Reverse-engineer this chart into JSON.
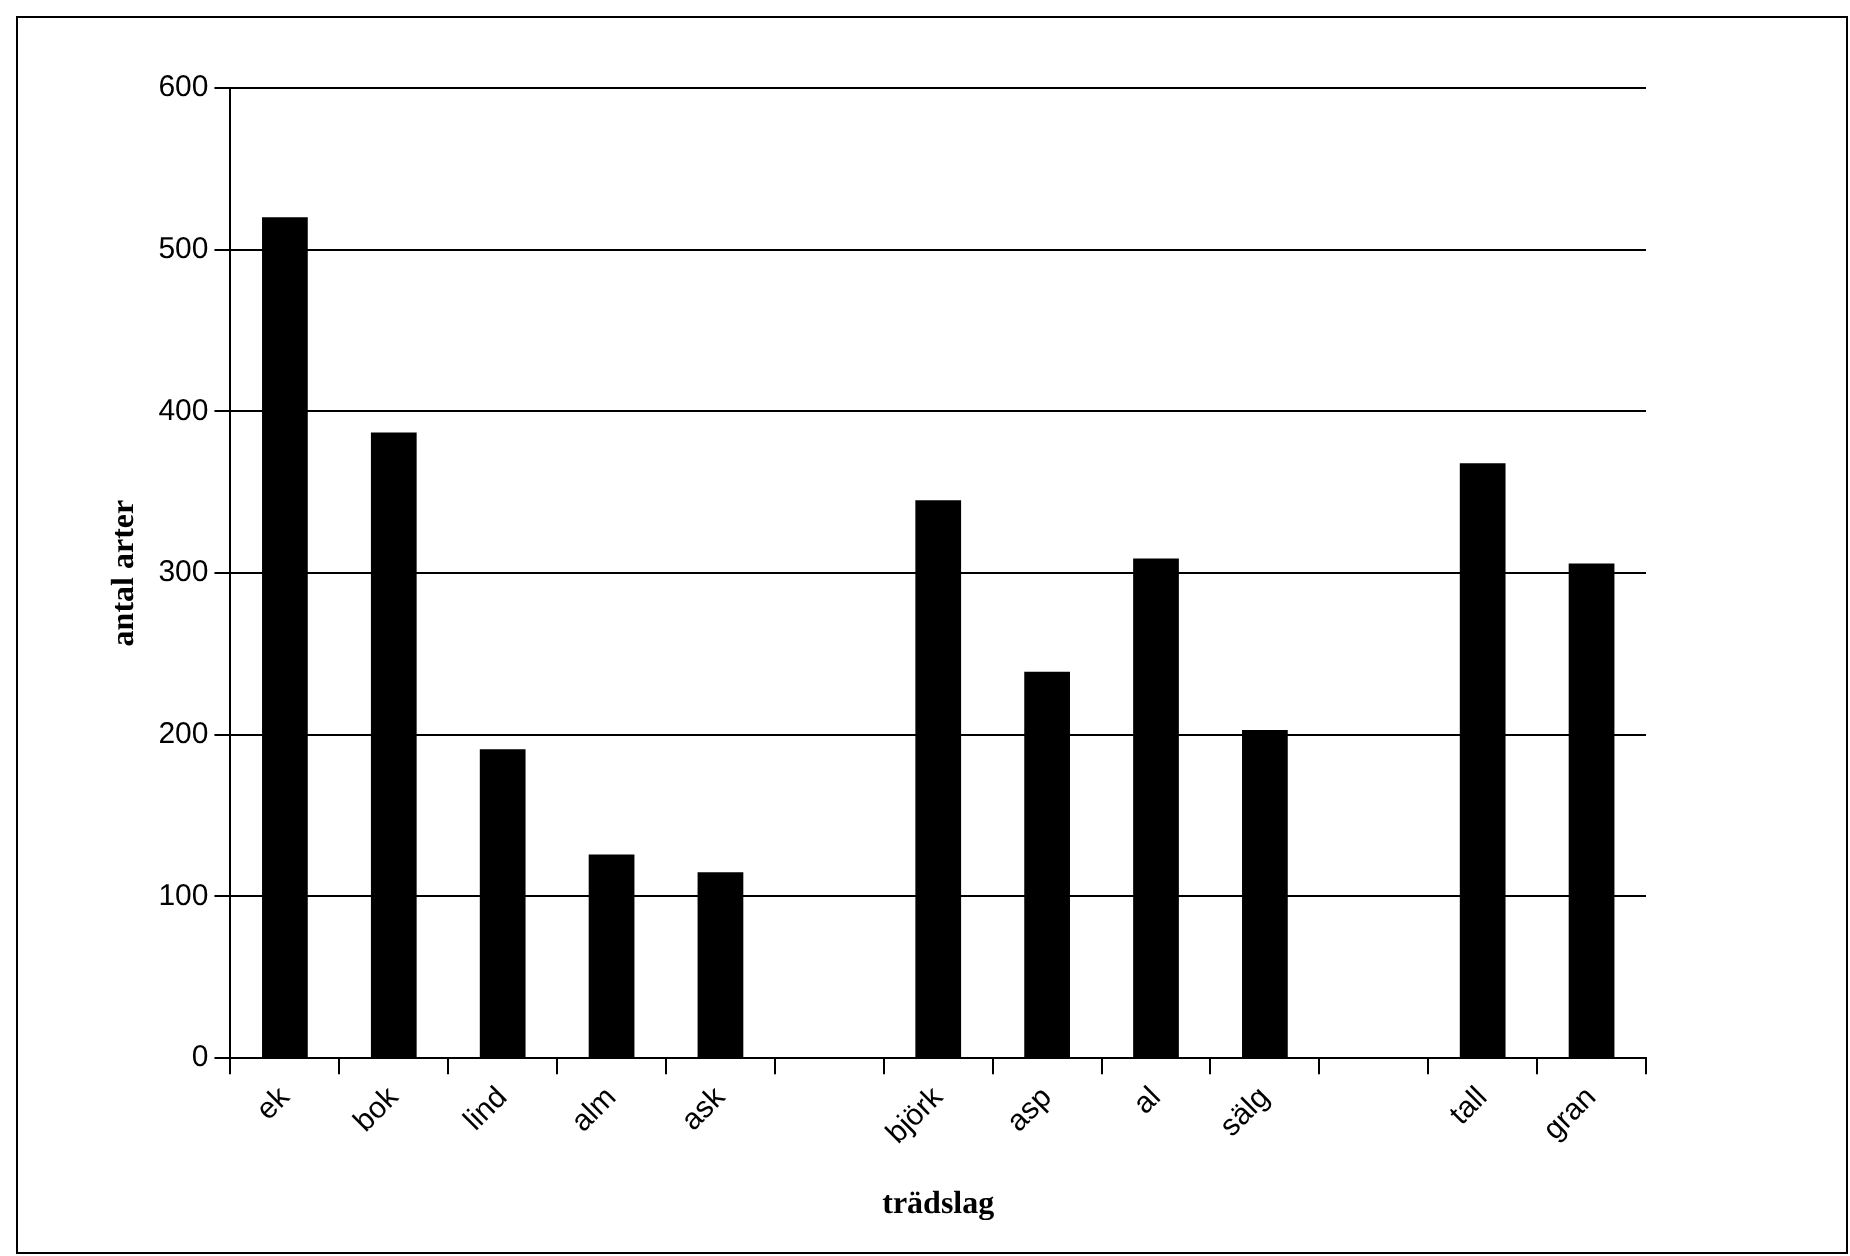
{
  "chart_data": {
    "type": "bar",
    "xlabel": "trädslag",
    "ylabel": "antal arter",
    "categories": [
      "ek",
      "bok",
      "lind",
      "alm",
      "ask",
      null,
      "björk",
      "asp",
      "al",
      "sälg",
      null,
      "tall",
      "gran"
    ],
    "values": [
      520,
      387,
      191,
      126,
      115,
      null,
      345,
      239,
      309,
      203,
      null,
      368,
      306
    ],
    "color": "#000000",
    "ylim": [
      0,
      600
    ],
    "yticks": [
      0,
      100,
      200,
      300,
      400,
      500,
      600
    ],
    "grid": "y",
    "legend": false
  }
}
